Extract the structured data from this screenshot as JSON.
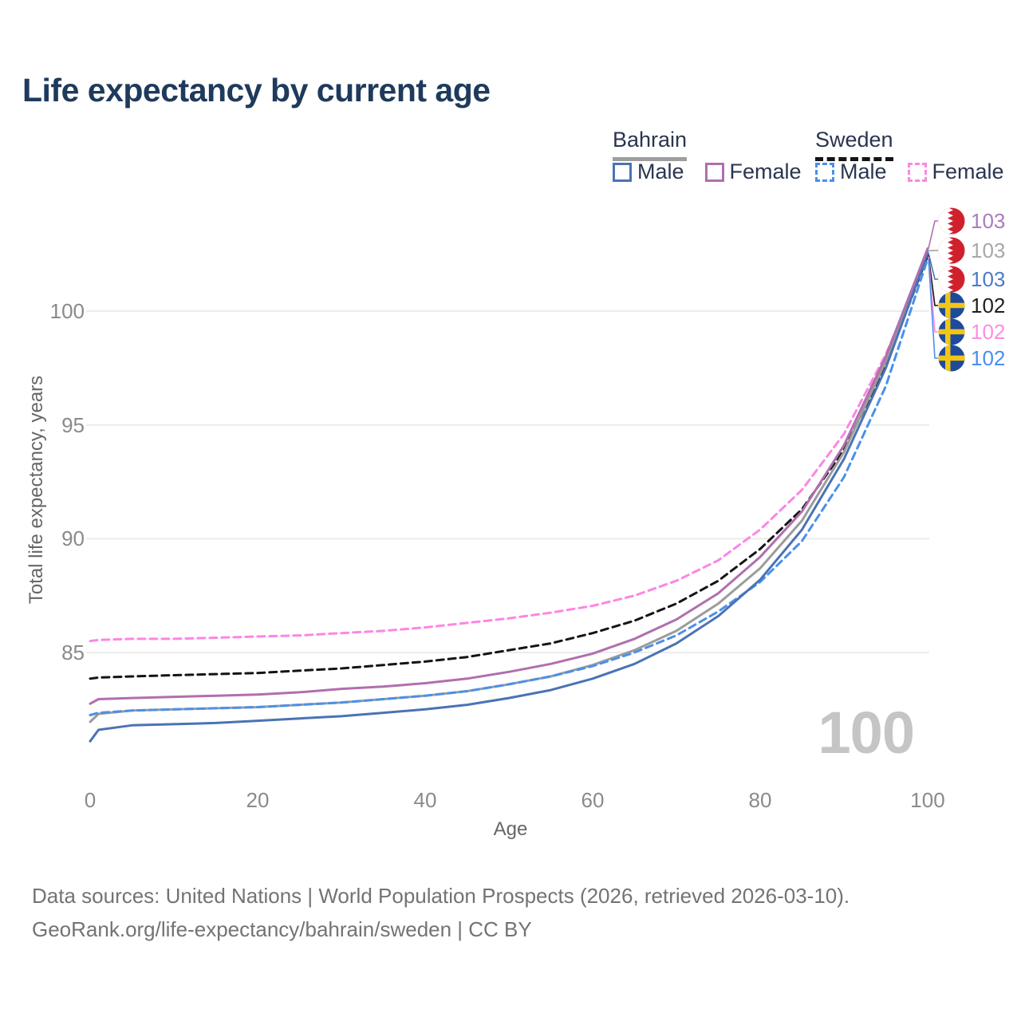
{
  "title": "Life expectancy by current age",
  "legend": {
    "groups": [
      {
        "country": "Bahrain",
        "entries": [
          {
            "label": "Male"
          },
          {
            "label": "Female"
          }
        ]
      },
      {
        "country": "Sweden",
        "entries": [
          {
            "label": "Male"
          },
          {
            "label": "Female"
          }
        ]
      }
    ]
  },
  "colors": {
    "bahrain_male": "#4a73b5",
    "bahrain_female": "#b06fae",
    "bahrain_both": "#9c9c9c",
    "sweden_male": "#4b90ea",
    "sweden_female": "#fc86e4",
    "sweden_both": "#141414",
    "grid": "#ececec",
    "title_text": "#1e3a5c",
    "watermark": "#c5c5c5",
    "flag_red": "#d0202e",
    "flag_blue": "#1e4a9c",
    "flag_yellow": "#f3c515"
  },
  "chart_data": {
    "type": "line",
    "title": "Life expectancy by current age",
    "xlabel": "Age",
    "ylabel": "Total life expectancy, years",
    "xlim": [
      0,
      100
    ],
    "ylim": [
      81,
      103.5
    ],
    "xticks": [
      0,
      20,
      40,
      60,
      80,
      100
    ],
    "yticks": [
      85,
      90,
      95,
      100
    ],
    "grid": "horizontal",
    "legend_position": "top-right",
    "x": [
      0,
      1,
      5,
      10,
      15,
      20,
      25,
      30,
      35,
      40,
      45,
      50,
      55,
      60,
      65,
      70,
      75,
      80,
      85,
      90,
      95,
      100
    ],
    "series": [
      {
        "id": "sweden_female",
        "name": "Sweden Female",
        "dash": true,
        "color": "#fc86e4",
        "values": [
          85.5,
          85.55,
          85.6,
          85.6,
          85.65,
          85.7,
          85.75,
          85.85,
          85.95,
          86.1,
          86.3,
          86.5,
          86.75,
          87.05,
          87.5,
          88.15,
          89.05,
          90.4,
          92.15,
          94.6,
          98.1,
          102.4
        ]
      },
      {
        "id": "sweden_both",
        "name": "Sweden",
        "dash": true,
        "color": "#141414",
        "values": [
          83.85,
          83.9,
          83.95,
          84.0,
          84.05,
          84.1,
          84.2,
          84.3,
          84.45,
          84.6,
          84.8,
          85.1,
          85.4,
          85.85,
          86.4,
          87.15,
          88.15,
          89.55,
          91.3,
          93.9,
          97.6,
          102.45
        ]
      },
      {
        "id": "bahrain_both",
        "name": "Bahrain",
        "dash": false,
        "color": "#9c9c9c",
        "values": [
          81.95,
          82.3,
          82.45,
          82.5,
          82.55,
          82.6,
          82.7,
          82.8,
          82.95,
          83.1,
          83.3,
          83.6,
          83.95,
          84.45,
          85.1,
          85.95,
          87.15,
          88.7,
          90.8,
          93.8,
          97.8,
          102.65
        ]
      },
      {
        "id": "sweden_male",
        "name": "Sweden Male",
        "dash": true,
        "color": "#4b90ea",
        "values": [
          82.25,
          82.35,
          82.45,
          82.5,
          82.55,
          82.6,
          82.7,
          82.8,
          82.95,
          83.1,
          83.3,
          83.6,
          83.95,
          84.4,
          85.0,
          85.75,
          86.8,
          88.1,
          89.9,
          92.7,
          96.7,
          102.3
        ]
      },
      {
        "id": "bahrain_male",
        "name": "Bahrain Male",
        "dash": false,
        "color": "#4a73b5",
        "values": [
          81.1,
          81.6,
          81.8,
          81.85,
          81.9,
          82.0,
          82.1,
          82.2,
          82.35,
          82.5,
          82.7,
          83.0,
          83.35,
          83.85,
          84.5,
          85.4,
          86.6,
          88.2,
          90.4,
          93.5,
          97.5,
          102.55
        ]
      },
      {
        "id": "bahrain_female",
        "name": "Bahrain Female",
        "dash": false,
        "color": "#b06fae",
        "values": [
          82.75,
          82.95,
          83.0,
          83.05,
          83.1,
          83.15,
          83.25,
          83.4,
          83.5,
          83.65,
          83.85,
          84.15,
          84.5,
          84.95,
          85.6,
          86.45,
          87.6,
          89.2,
          91.2,
          94.1,
          98.0,
          102.75
        ]
      }
    ],
    "end_labels": [
      {
        "series": "bahrain_female",
        "flag": "bahrain",
        "value": "103",
        "color": "#a97cbe"
      },
      {
        "series": "bahrain_both",
        "flag": "bahrain",
        "value": "103",
        "color": "#a8a8a8"
      },
      {
        "series": "bahrain_male",
        "flag": "bahrain",
        "value": "103",
        "color": "#4e79c6"
      },
      {
        "series": "sweden_both",
        "flag": "sweden",
        "value": "102",
        "color": "#1f1f1f"
      },
      {
        "series": "sweden_female",
        "flag": "sweden",
        "value": "102",
        "color": "#fd8ce5"
      },
      {
        "series": "sweden_male",
        "flag": "sweden",
        "value": "102",
        "color": "#4b8ef0"
      }
    ]
  },
  "watermark": "100",
  "footer": {
    "line1": "Data sources: United Nations | World Population Prospects (2026, retrieved 2026-03-10).",
    "line2": "GeoRank.org/life-expectancy/bahrain/sweden | CC BY"
  }
}
